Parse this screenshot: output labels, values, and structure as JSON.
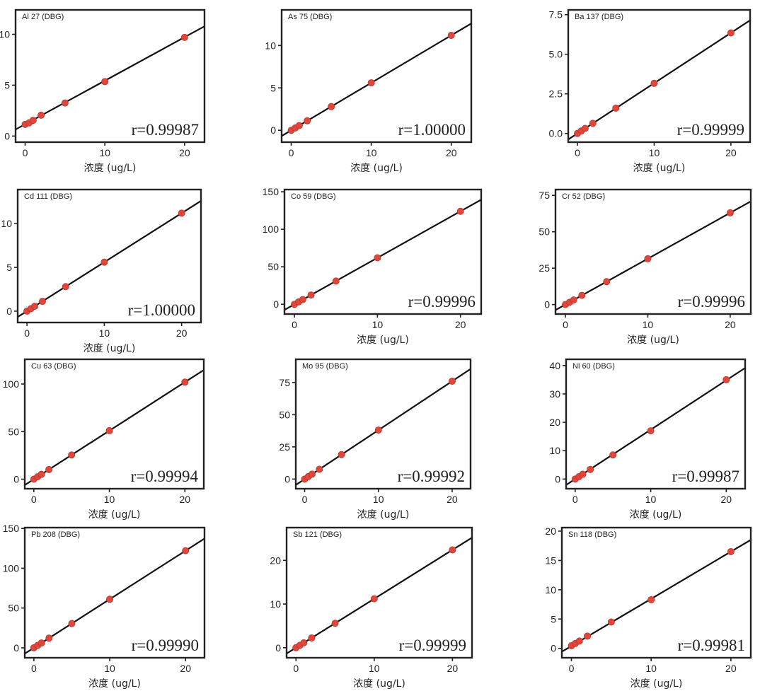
{
  "colors": {
    "point": "#e0473a",
    "line": "#111111",
    "frame": "#222222"
  },
  "chart_data": [
    {
      "type": "scatter",
      "title": "Al 27 (DBG)",
      "xlabel": "浓度 (ug/L)",
      "ylabel": "",
      "xlim": [
        -1.2,
        22.5
      ],
      "ylim": [
        -0.6,
        12.4
      ],
      "xticks": [
        0,
        10,
        20
      ],
      "yticks": [
        0,
        5,
        10
      ],
      "ytick_labels": [
        "0",
        "5",
        "10"
      ],
      "x": [
        0,
        0.5,
        1,
        2,
        5,
        10,
        20
      ],
      "y": [
        1.15,
        1.3,
        1.55,
        2.05,
        3.25,
        5.35,
        9.7
      ],
      "fit": {
        "slope": 0.428,
        "intercept": 1.16
      },
      "r_label": "r=0.99987"
    },
    {
      "type": "scatter",
      "title": "As 75 (DBG)",
      "xlabel": "浓度 (ug/L)",
      "ylabel": "",
      "xlim": [
        -1.2,
        22.5
      ],
      "ylim": [
        -1.4,
        14.2
      ],
      "xticks": [
        0,
        10,
        20
      ],
      "yticks": [
        0,
        5,
        10
      ],
      "ytick_labels": [
        "0",
        "5",
        "10"
      ],
      "x": [
        0,
        0.5,
        1,
        2,
        5,
        10,
        20
      ],
      "y": [
        0.0,
        0.28,
        0.56,
        1.12,
        2.8,
        5.6,
        11.2
      ],
      "fit": {
        "slope": 0.56,
        "intercept": 0
      },
      "r_label": "r=1.00000"
    },
    {
      "type": "scatter",
      "title": "Ba 137 (DBG)",
      "xlabel": "浓度 (ug/L)",
      "ylabel": "",
      "xlim": [
        -1.2,
        22.5
      ],
      "ylim": [
        -0.55,
        7.8
      ],
      "xticks": [
        0,
        10,
        20
      ],
      "yticks": [
        0,
        2.5,
        5,
        7.5
      ],
      "ytick_labels": [
        "0.0",
        "2.5",
        "5.0",
        "7.5"
      ],
      "x": [
        0,
        0.5,
        1,
        2,
        5,
        10,
        20
      ],
      "y": [
        0.0,
        0.16,
        0.32,
        0.64,
        1.6,
        3.17,
        6.35
      ],
      "fit": {
        "slope": 0.3175,
        "intercept": 0
      },
      "r_label": "r=0.99999"
    },
    {
      "type": "scatter",
      "title": "Cd 111 (DBG)",
      "xlabel": "浓度 (ug/L)",
      "ylabel": "",
      "xlim": [
        -1.2,
        22.5
      ],
      "ylim": [
        -1.3,
        13.9
      ],
      "xticks": [
        0,
        10,
        20
      ],
      "yticks": [
        0,
        5,
        10
      ],
      "ytick_labels": [
        "0",
        "5",
        "10"
      ],
      "x": [
        0,
        0.5,
        1,
        2,
        5,
        10,
        20
      ],
      "y": [
        0.0,
        0.28,
        0.56,
        1.12,
        2.8,
        5.6,
        11.2
      ],
      "fit": {
        "slope": 0.56,
        "intercept": 0
      },
      "r_label": "r=1.00000"
    },
    {
      "type": "scatter",
      "title": "Co 59 (DBG)",
      "xlabel": "浓度 (ug/L)",
      "ylabel": "",
      "xlim": [
        -1.2,
        22.5
      ],
      "ylim": [
        -13,
        153
      ],
      "xticks": [
        0,
        10,
        20
      ],
      "yticks": [
        0,
        50,
        100,
        150
      ],
      "ytick_labels": [
        "0",
        "50",
        "100",
        "150"
      ],
      "x": [
        0,
        0.5,
        1,
        2,
        5,
        10,
        20
      ],
      "y": [
        0,
        3.1,
        6.2,
        12.4,
        31,
        62,
        124
      ],
      "fit": {
        "slope": 6.2,
        "intercept": 0
      },
      "r_label": "r=0.99996"
    },
    {
      "type": "scatter",
      "title": "Cr 52 (DBG)",
      "xlabel": "浓度 (ug/L)",
      "ylabel": "",
      "xlim": [
        -1.2,
        22.5
      ],
      "ylim": [
        -6.5,
        79
      ],
      "xticks": [
        0,
        10,
        20
      ],
      "yticks": [
        0,
        25,
        50,
        75
      ],
      "ytick_labels": [
        "0",
        "25",
        "50",
        "75"
      ],
      "x": [
        0,
        0.5,
        1,
        2,
        5,
        10,
        20
      ],
      "y": [
        0,
        1.57,
        3.15,
        6.3,
        15.75,
        31.5,
        63
      ],
      "fit": {
        "slope": 3.15,
        "intercept": 0
      },
      "r_label": "r=0.99996"
    },
    {
      "type": "scatter",
      "title": "Cu 63 (DBG)",
      "xlabel": "浓度 (ug/L)",
      "ylabel": "",
      "xlim": [
        -1.2,
        22.5
      ],
      "ylim": [
        -10,
        126
      ],
      "xticks": [
        0,
        10,
        20
      ],
      "yticks": [
        0,
        50,
        100
      ],
      "ytick_labels": [
        "0",
        "50",
        "100"
      ],
      "x": [
        0,
        0.5,
        1,
        2,
        5,
        10,
        20
      ],
      "y": [
        0,
        2.55,
        5.1,
        10.2,
        25.5,
        51,
        102
      ],
      "fit": {
        "slope": 5.1,
        "intercept": 0
      },
      "r_label": "r=0.99994"
    },
    {
      "type": "scatter",
      "title": "Mo 95 (DBG)",
      "xlabel": "浓度 (ug/L)",
      "ylabel": "",
      "xlim": [
        -1.2,
        22.5
      ],
      "ylim": [
        -7.5,
        93
      ],
      "xticks": [
        0,
        10,
        20
      ],
      "yticks": [
        0,
        25,
        50,
        75
      ],
      "ytick_labels": [
        "0",
        "25",
        "50",
        "75"
      ],
      "x": [
        0,
        0.5,
        1,
        2,
        5,
        10,
        20
      ],
      "y": [
        0,
        1.9,
        3.8,
        7.6,
        19,
        38,
        76
      ],
      "fit": {
        "slope": 3.8,
        "intercept": 0
      },
      "r_label": "r=0.99992"
    },
    {
      "type": "scatter",
      "title": "Ni 60 (DBG)",
      "xlabel": "浓度 (ug/L)",
      "ylabel": "",
      "xlim": [
        -1.2,
        22.5
      ],
      "ylim": [
        -3.4,
        42.2
      ],
      "xticks": [
        0,
        10,
        20
      ],
      "yticks": [
        0,
        10,
        20,
        30,
        40
      ],
      "ytick_labels": [
        "0",
        "10",
        "20",
        "30",
        "40"
      ],
      "x": [
        0,
        0.5,
        1,
        2,
        5,
        10,
        20
      ],
      "y": [
        0,
        0.85,
        1.7,
        3.4,
        8.5,
        17,
        35
      ],
      "fit": {
        "slope": 1.74,
        "intercept": 0
      },
      "r_label": "r=0.99987"
    },
    {
      "type": "scatter",
      "title": "Pb 208 (DBG)",
      "xlabel": "浓度 (ug/L)",
      "ylabel": "",
      "xlim": [
        -1.2,
        22.5
      ],
      "ylim": [
        -12.5,
        151
      ],
      "xticks": [
        0,
        10,
        20
      ],
      "yticks": [
        0,
        50,
        100,
        150
      ],
      "ytick_labels": [
        "0",
        "50",
        "100",
        "150"
      ],
      "x": [
        0,
        0.5,
        1,
        2,
        5,
        10,
        20
      ],
      "y": [
        0,
        3.05,
        6.1,
        12.2,
        30.5,
        61,
        122
      ],
      "fit": {
        "slope": 6.1,
        "intercept": 0
      },
      "r_label": "r=0.99990"
    },
    {
      "type": "scatter",
      "title": "Sb 121 (DBG)",
      "xlabel": "浓度 (ug/L)",
      "ylabel": "",
      "xlim": [
        -1.2,
        22.5
      ],
      "ylim": [
        -2.3,
        27.5
      ],
      "xticks": [
        0,
        10,
        20
      ],
      "yticks": [
        0,
        10,
        20
      ],
      "ytick_labels": [
        "0",
        "10",
        "20"
      ],
      "x": [
        0,
        0.5,
        1,
        2,
        5,
        10,
        20
      ],
      "y": [
        0,
        0.56,
        1.12,
        2.24,
        5.6,
        11.2,
        22.4
      ],
      "fit": {
        "slope": 1.12,
        "intercept": 0
      },
      "r_label": "r=0.99999"
    },
    {
      "type": "scatter",
      "title": "Sn 118 (DBG)",
      "xlabel": "浓度 (ug/L)",
      "ylabel": "",
      "xlim": [
        -1.2,
        22.5
      ],
      "ylim": [
        -1.6,
        20.6
      ],
      "xticks": [
        0,
        10,
        20
      ],
      "yticks": [
        0,
        5,
        10,
        15,
        20
      ],
      "ytick_labels": [
        "0",
        "5",
        "10",
        "15",
        "20"
      ],
      "x": [
        0,
        0.5,
        1,
        2,
        5,
        10,
        20
      ],
      "y": [
        0.45,
        0.85,
        1.25,
        2.1,
        4.5,
        8.3,
        16.5
      ],
      "fit": {
        "slope": 0.805,
        "intercept": 0.4
      },
      "r_label": "r=0.99981"
    }
  ]
}
